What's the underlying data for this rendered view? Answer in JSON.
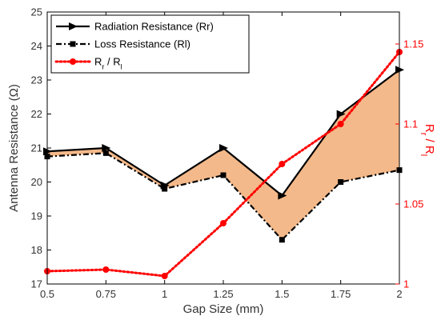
{
  "chart_data": {
    "type": "line",
    "x": [
      0.5,
      0.75,
      1,
      1.25,
      1.5,
      1.75,
      2
    ],
    "x_tick_labels": [
      "0.5",
      "0.75",
      "1",
      "1.25",
      "1.5",
      "1.75",
      "2"
    ],
    "xlabel": "Gap Size (mm)",
    "xlim": [
      0.5,
      2
    ],
    "ylabel_left": "Antenna Resistance  (Ω)",
    "ylim_left": [
      17,
      25
    ],
    "y_left_ticks": [
      "17",
      "18",
      "19",
      "20",
      "21",
      "22",
      "23",
      "24",
      "25"
    ],
    "ylabel_right": "Rr / Rl",
    "ylim_right": [
      1.0,
      1.17
    ],
    "y_right_ticks": [
      "1",
      "1.05",
      "1.1",
      "1.15"
    ],
    "series": [
      {
        "name": "Radiation Resistance (Rr)",
        "axis": "left",
        "color": "#000000",
        "line": "solid",
        "marker": "right-triangle",
        "values": [
          20.9,
          21.0,
          19.9,
          21.0,
          19.6,
          22.0,
          23.3
        ]
      },
      {
        "name": "Loss Resistance (Rl)",
        "axis": "left",
        "color": "#000000",
        "line": "dash-dot",
        "marker": "square",
        "values": [
          20.75,
          20.85,
          19.8,
          20.2,
          18.3,
          20.0,
          20.35
        ]
      },
      {
        "name": "Rr / Rl",
        "axis": "right",
        "color": "#ff0000",
        "line": "dotted",
        "marker": "circle",
        "values": [
          1.008,
          1.009,
          1.005,
          1.038,
          1.075,
          1.1,
          1.145
        ]
      }
    ],
    "fill_between": {
      "series": [
        0,
        1
      ],
      "color": "#f4b98a"
    },
    "legend": {
      "position": "top-left",
      "entries": [
        {
          "label": "Radiation Resistance (Rr)"
        },
        {
          "label": "Loss Resistance (Rl)"
        },
        {
          "label_main": "R",
          "sub1": "r",
          "mid": " / R",
          "sub2": "l"
        }
      ]
    },
    "grid": false
  }
}
